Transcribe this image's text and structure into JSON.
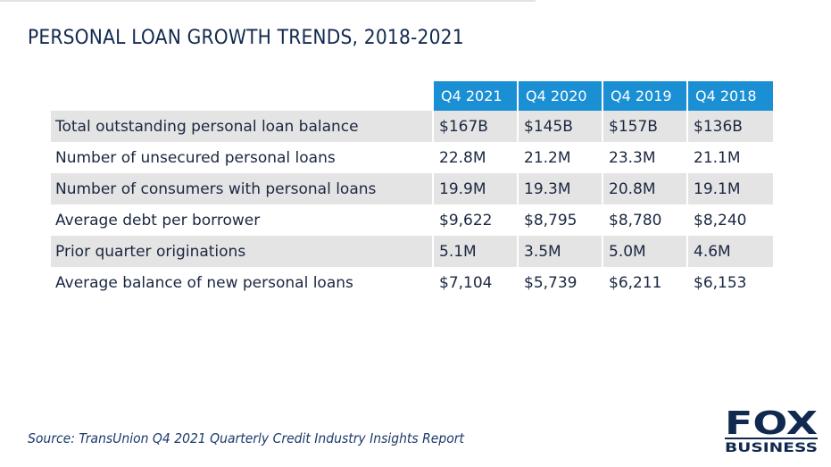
{
  "title": "PERSONAL LOAN GROWTH TRENDS, 2018-2021",
  "source": "Source: TransUnion Q4 2021 Quarterly Credit Industry Insights Report",
  "logo": {
    "text_main": "FOX",
    "text_sub": "BUSINESS",
    "color": "#12294f"
  },
  "colors": {
    "header_bg": "#1a8fd4",
    "row_shade": "#e4e4e4",
    "title": "#12294f",
    "text": "#1b2740"
  },
  "chart_data": {
    "type": "table",
    "title": "PERSONAL LOAN GROWTH TRENDS, 2018-2021",
    "columns": [
      "Q4 2021",
      "Q4 2020",
      "Q4 2019",
      "Q4 2018"
    ],
    "rows": [
      {
        "label": "Total outstanding personal loan balance",
        "values": [
          "$167B",
          "$145B",
          "$157B",
          "$136B"
        ]
      },
      {
        "label": "Number of unsecured personal loans",
        "values": [
          "22.8M",
          "21.2M",
          "23.3M",
          "21.1M"
        ]
      },
      {
        "label": "Number of consumers with personal loans",
        "values": [
          "19.9M",
          "19.3M",
          "20.8M",
          "19.1M"
        ]
      },
      {
        "label": "Average debt per borrower",
        "values": [
          "$9,622",
          "$8,795",
          "$8,780",
          "$8,240"
        ]
      },
      {
        "label": "Prior quarter originations",
        "values": [
          "5.1M",
          "3.5M",
          "5.0M",
          "4.6M"
        ]
      },
      {
        "label": "Average balance of new personal loans",
        "values": [
          "$7,104",
          "$5,739",
          "$6,211",
          "$6,153"
        ]
      }
    ]
  }
}
